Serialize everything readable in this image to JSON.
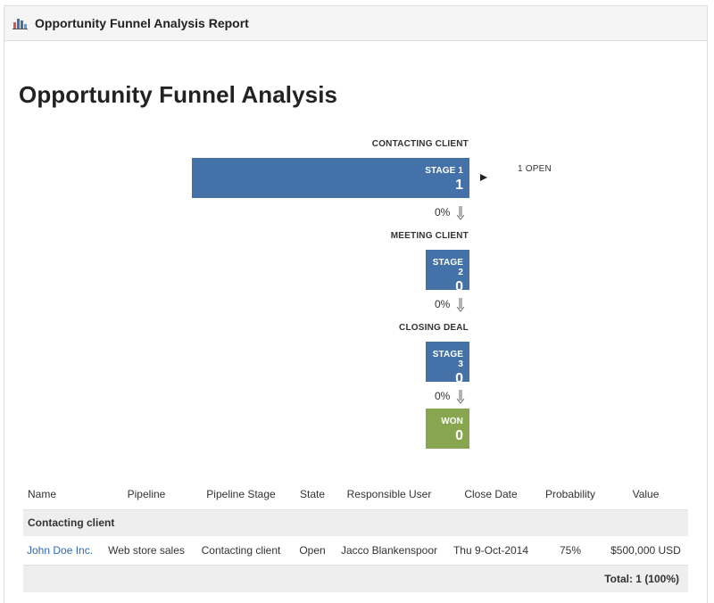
{
  "window": {
    "title": "Opportunity Funnel Analysis Report",
    "icon": "bar-chart-icon"
  },
  "report": {
    "title": "Opportunity Funnel Analysis"
  },
  "funnel": {
    "stages": [
      {
        "label": "CONTACTING CLIENT",
        "name": "STAGE 1",
        "count": "1",
        "conversion": "0%",
        "open": "1 OPEN"
      },
      {
        "label": "MEETING CLIENT",
        "name": "STAGE 2",
        "count": "0",
        "conversion": "0%"
      },
      {
        "label": "CLOSING DEAL",
        "name": "STAGE 3",
        "count": "0",
        "conversion": "0%"
      }
    ],
    "won": {
      "name": "WON",
      "count": "0"
    }
  },
  "colors": {
    "stage_bar": "#4472a8",
    "won_bar": "#88a64f",
    "link": "#2a6ab4",
    "group_bg": "#eeeeee"
  },
  "table": {
    "columns": [
      "Name",
      "Pipeline",
      "Pipeline Stage",
      "State",
      "Responsible User",
      "Close Date",
      "Probability",
      "Value"
    ],
    "group": "Contacting client",
    "rows": [
      {
        "name": "John Doe Inc.",
        "pipeline": "Web store sales",
        "stage": "Contacting client",
        "state": "Open",
        "user": "Jacco Blankenspoor",
        "close_date": "Thu 9-Oct-2014",
        "probability": "75%",
        "value": "$500,000 USD"
      }
    ],
    "total": "Total: 1 (100%)"
  }
}
